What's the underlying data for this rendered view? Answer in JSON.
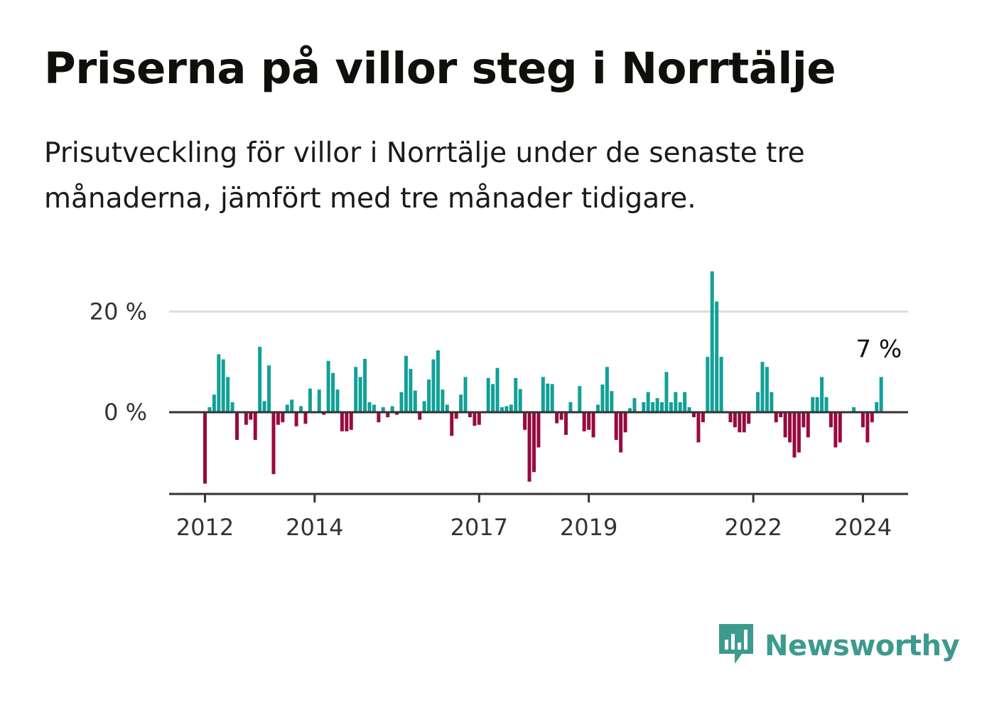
{
  "header": {
    "title": "Priserna på villor steg i Norrtälje",
    "subtitle": "Prisutveckling för villor i Norrtälje under de senaste tre månaderna, jämfört med tre månader tidigare."
  },
  "brand": {
    "name": "Newsworthy",
    "icon": "newsworthy-logo-icon",
    "color": "#3d9a8f"
  },
  "colors": {
    "positive": "#12a097",
    "negative": "#980a40",
    "grid": "#dddddd",
    "axis": "#333333"
  },
  "chart_data": {
    "type": "bar",
    "title": "Priserna på villor steg i Norrtälje",
    "subtitle": "Prisutveckling för villor i Norrtälje under de senaste tre månaderna, jämfört med tre månader tidigare.",
    "xlabel": "",
    "ylabel": "",
    "unit": "%",
    "frequency": "monthly",
    "x_start": "2012-01",
    "x_ticks": [
      "2012",
      "2014",
      "2017",
      "2019",
      "2022",
      "2024"
    ],
    "y_ticks": [
      {
        "value": 0,
        "label": "0 %"
      },
      {
        "value": 20,
        "label": "20 %"
      }
    ],
    "ylim": [
      -16,
      28
    ],
    "grid": true,
    "last_value_label": "7 %",
    "values": [
      -14.2,
      1.0,
      3.5,
      11.5,
      10.5,
      7.0,
      2.0,
      -5.5,
      0,
      -2.5,
      -1.5,
      -5.5,
      13.0,
      2.2,
      9.3,
      -12.3,
      -2.5,
      -2.0,
      1.5,
      2.5,
      -2.8,
      1.2,
      -2.3,
      4.7,
      0,
      4.5,
      -0.5,
      10.2,
      7.8,
      4.5,
      -3.8,
      -3.8,
      -3.5,
      9.0,
      7.0,
      10.6,
      2.0,
      1.5,
      -2.0,
      1.0,
      -1.0,
      1.2,
      -0.5,
      4.0,
      11.2,
      8.6,
      4.3,
      -1.5,
      2.2,
      6.5,
      10.5,
      12.3,
      4.5,
      1.5,
      -4.7,
      -1.3,
      3.5,
      7.0,
      -1.0,
      -2.7,
      -2.5,
      0.2,
      6.8,
      5.6,
      8.8,
      1.0,
      1.2,
      1.5,
      6.8,
      4.6,
      -3.5,
      -13.8,
      -11.9,
      -7.0,
      7.0,
      5.7,
      5.6,
      -2.2,
      -1.5,
      -4.5,
      2.0,
      0,
      5.2,
      -3.8,
      -3.5,
      -5.0,
      1.5,
      5.5,
      9.0,
      4.2,
      -5.5,
      -8.0,
      -4.0,
      0.8,
      2.8,
      0,
      2.0,
      4.0,
      2.0,
      2.8,
      2.0,
      8.0,
      2.0,
      4.0,
      2.0,
      4.0,
      1.0,
      -1.0,
      -6.0,
      -2.0,
      11.0,
      28.0,
      22.0,
      11.0,
      0,
      -2.0,
      -3.0,
      -4.0,
      -4.0,
      -2.3,
      0,
      4.0,
      10.0,
      9.0,
      4.0,
      -2.0,
      -1.0,
      -5.0,
      -6.0,
      -9.0,
      -8.0,
      -3.0,
      -5.0,
      3.0,
      3.0,
      7.0,
      3.0,
      -3.0,
      -7.0,
      -6.0,
      0,
      0,
      1.0,
      0,
      -3.0,
      -6.0,
      -2.0,
      2.0,
      7.0
    ]
  }
}
